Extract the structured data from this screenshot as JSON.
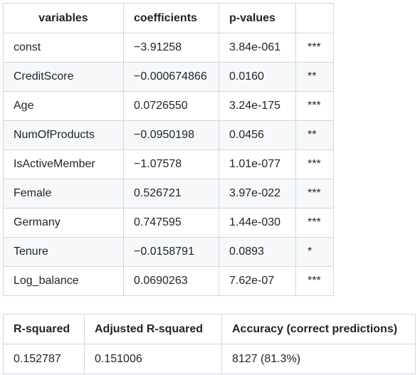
{
  "coefficients_table": {
    "headers": {
      "variables": "variables",
      "coefficients": "coefficients",
      "p_values": "p-values",
      "significance": ""
    },
    "rows": [
      {
        "variable": "const",
        "coefficient": "−3.91258",
        "p_value": "3.84e-061",
        "significance": "***"
      },
      {
        "variable": "CreditScore",
        "coefficient": "−0.000674866",
        "p_value": "0.0160",
        "significance": "**"
      },
      {
        "variable": "Age",
        "coefficient": "0.0726550",
        "p_value": "3.24e-175",
        "significance": "***"
      },
      {
        "variable": "NumOfProducts",
        "coefficient": "−0.0950198",
        "p_value": "0.0456",
        "significance": "**"
      },
      {
        "variable": "IsActiveMember",
        "coefficient": "−1.07578",
        "p_value": "1.01e-077",
        "significance": "***"
      },
      {
        "variable": "Female",
        "coefficient": "0.526721",
        "p_value": "3.97e-022",
        "significance": "***"
      },
      {
        "variable": "Germany",
        "coefficient": "0.747595",
        "p_value": "1.44e-030",
        "significance": "***"
      },
      {
        "variable": "Tenure",
        "coefficient": "−0.0158791",
        "p_value": "0.0893",
        "significance": "*"
      },
      {
        "variable": "Log_balance",
        "coefficient": "0.0690263",
        "p_value": "7.62e-07",
        "significance": "***"
      }
    ]
  },
  "fit_table": {
    "headers": {
      "r_squared": "R-squared",
      "adjusted_r_squared": "Adjusted R-squared",
      "accuracy": "Accuracy (correct predictions)"
    },
    "values": {
      "r_squared": "0.152787",
      "adjusted_r_squared": "0.151006",
      "accuracy": "8127 (81.3%)"
    }
  }
}
